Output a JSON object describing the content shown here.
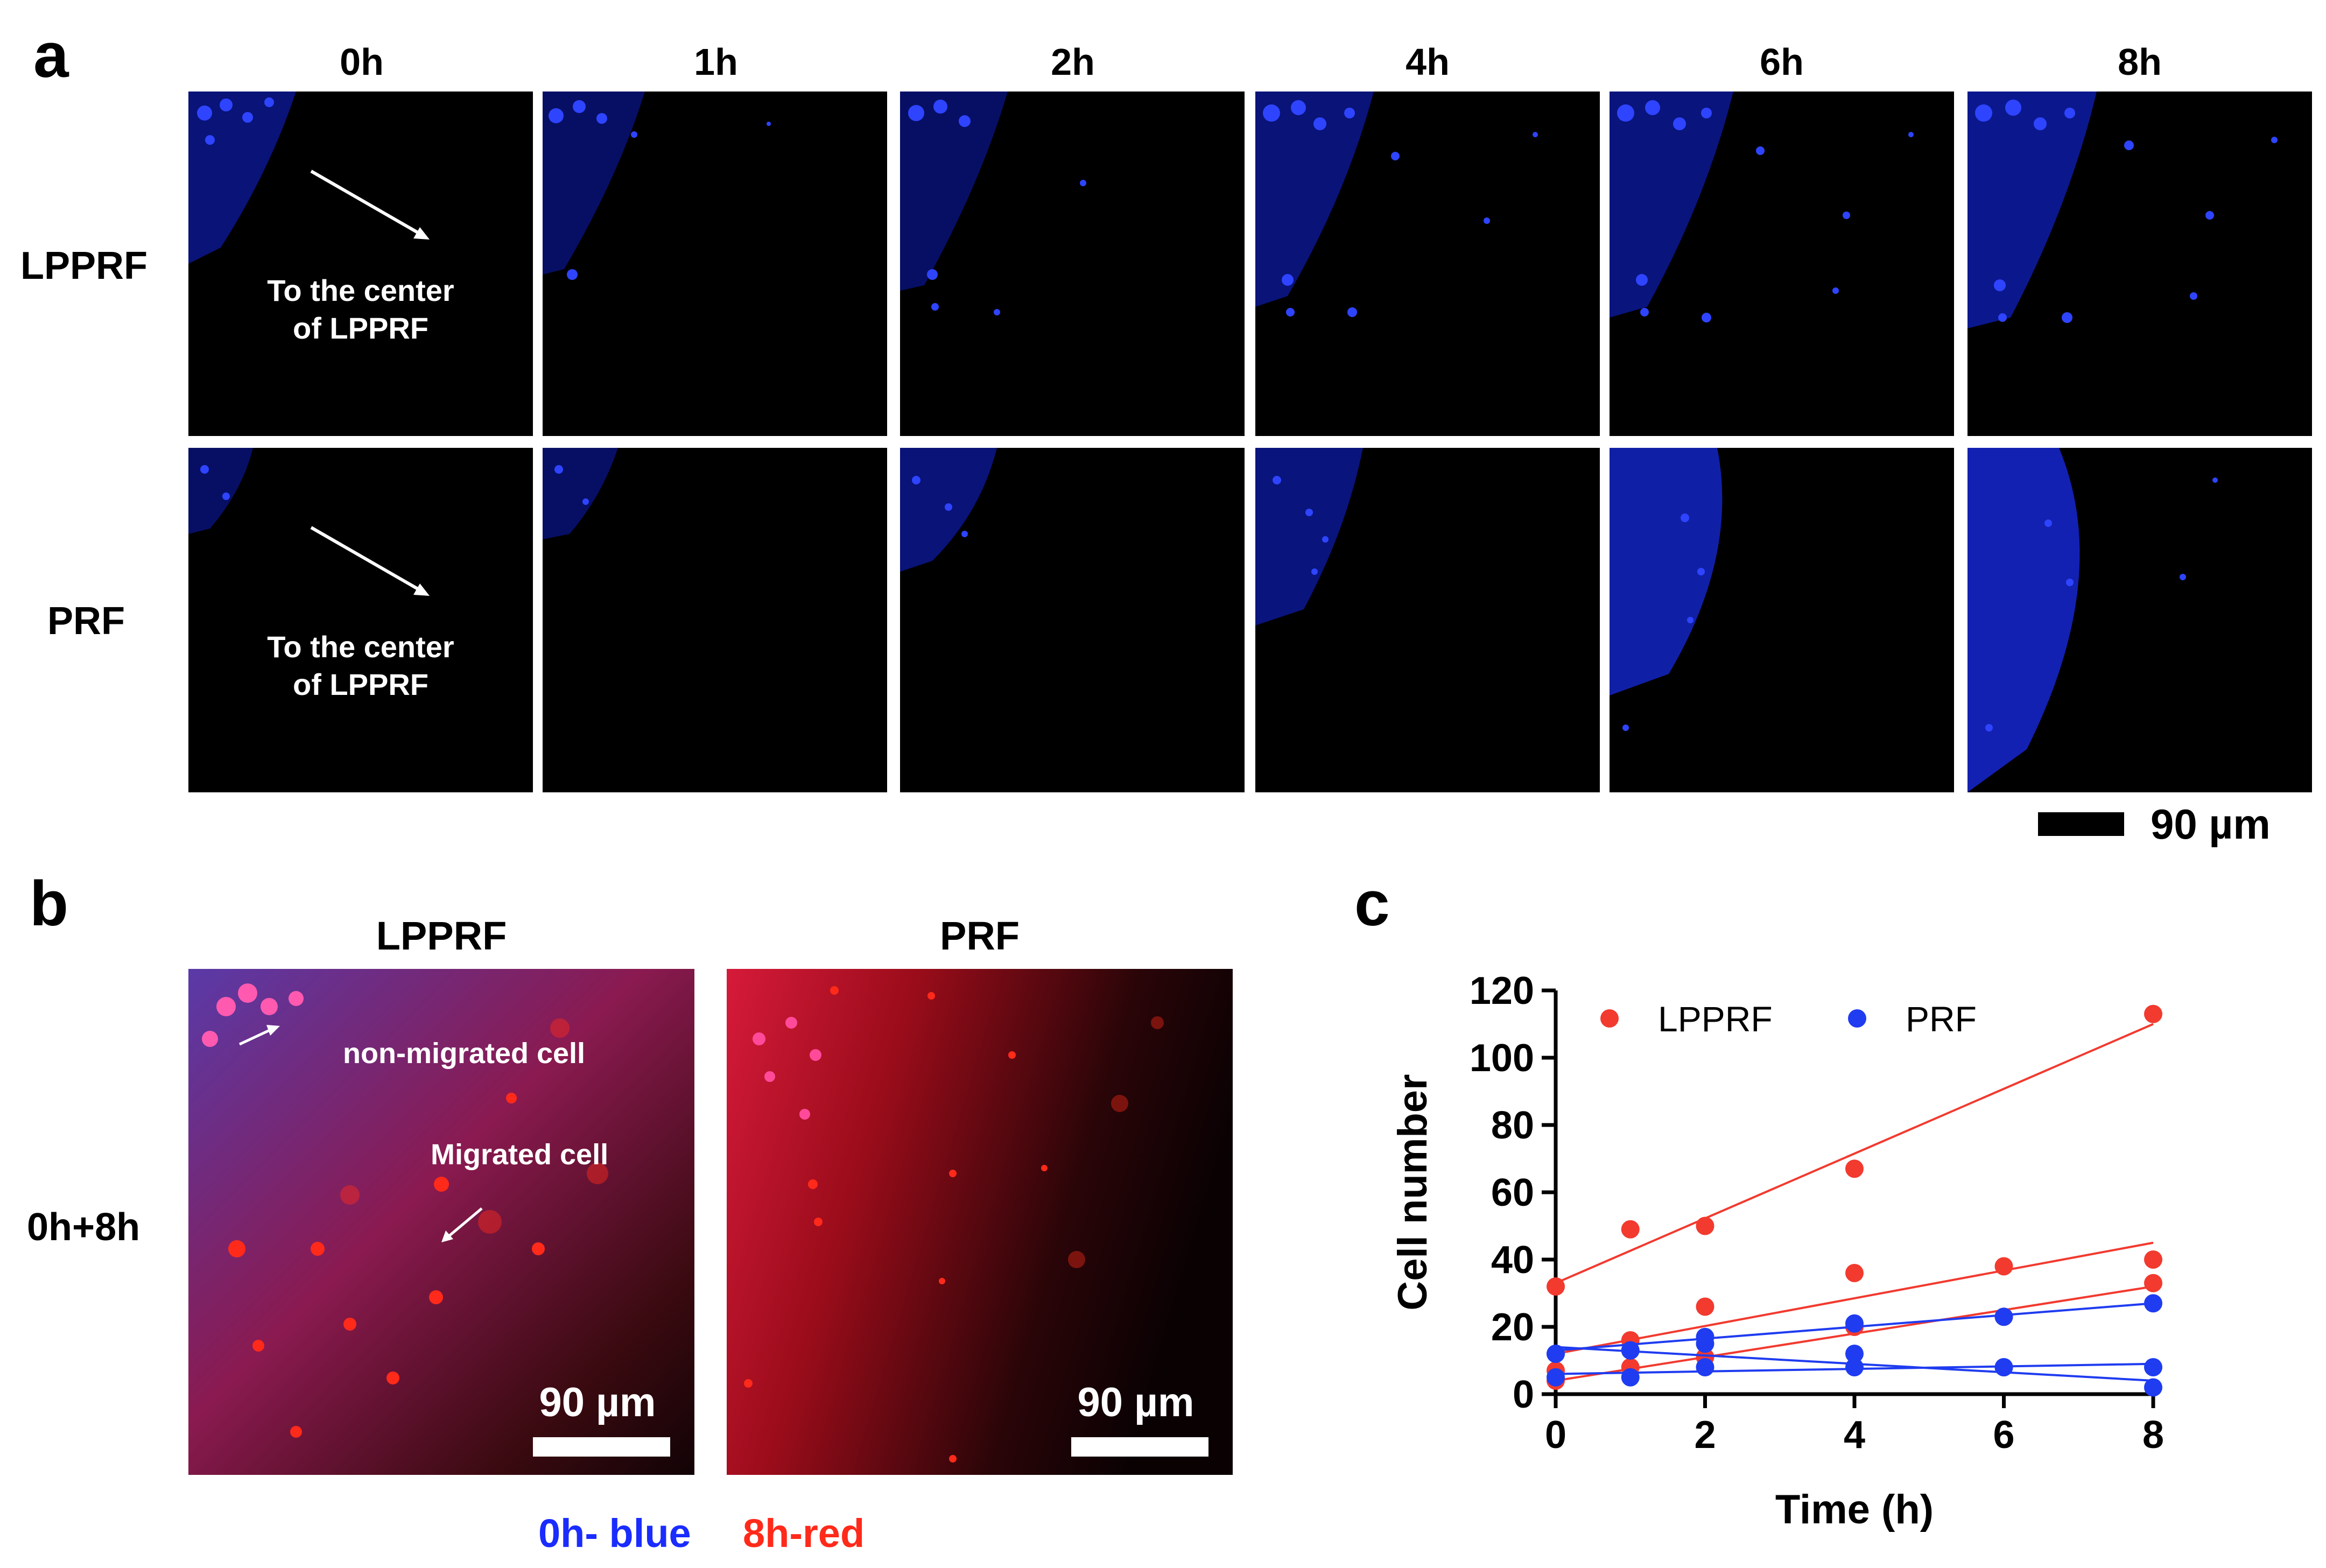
{
  "panel_a": {
    "letter": "a",
    "columns": [
      "0h",
      "1h",
      "2h",
      "4h",
      "6h",
      "8h"
    ],
    "rows": [
      "LPPRF",
      "PRF"
    ],
    "arrow_annotations": [
      "To the center\nof LPPRF",
      "To the center\nof LPPRF"
    ],
    "scale_bar_label": "90 µm"
  },
  "panel_b": {
    "letter": "b",
    "titles": [
      "LPPRF",
      "PRF"
    ],
    "row_label": "0h+8h",
    "annotations": {
      "non_migrated": "non-migrated cell",
      "migrated": "Migrated cell"
    },
    "scale_bar_label": "90 µm",
    "legend": {
      "blue": "0h- blue",
      "red": "8h-red"
    },
    "colors": {
      "blue": "#1a2cff",
      "red": "#ff2a1a"
    }
  },
  "chart_data": {
    "type": "scatter",
    "panel_letter": "c",
    "title": "",
    "xlabel": "Time (h)",
    "ylabel": "Cell number",
    "xlim": [
      0,
      8
    ],
    "ylim": [
      0,
      120
    ],
    "xticks": [
      0,
      2,
      4,
      6,
      8
    ],
    "yticks": [
      0,
      20,
      40,
      60,
      80,
      100,
      120
    ],
    "legend_position": "top",
    "series": [
      {
        "name": "LPPRF",
        "color": "#f23a2f",
        "replicates": [
          {
            "x": [
              0,
              1,
              2,
              4,
              8
            ],
            "y": [
              32,
              49,
              50,
              67,
              113
            ],
            "fit": [
              33,
              110
            ]
          },
          {
            "x": [
              0,
              1,
              2,
              4,
              6,
              8
            ],
            "y": [
              7,
              16,
              26,
              36,
              38,
              40
            ],
            "fit": [
              12,
              45
            ]
          },
          {
            "x": [
              0,
              1,
              2,
              4,
              6,
              8
            ],
            "y": [
              4,
              8,
              11,
              20,
              23,
              33
            ],
            "fit": [
              4,
              32
            ]
          }
        ]
      },
      {
        "name": "PRF",
        "color": "#1f3cf0",
        "replicates": [
          {
            "x": [
              0,
              1,
              2,
              4,
              6,
              8
            ],
            "y": [
              12,
              13,
              17,
              21,
              23,
              27
            ],
            "fit": [
              13,
              27
            ]
          },
          {
            "x": [
              0,
              1,
              2,
              4,
              6,
              8
            ],
            "y": [
              12,
              13,
              15,
              12,
              8,
              2
            ],
            "fit": [
              14,
              4
            ]
          },
          {
            "x": [
              0,
              1,
              2,
              4,
              6,
              8
            ],
            "y": [
              5,
              5,
              8,
              8,
              8,
              8
            ],
            "fit": [
              6,
              9
            ]
          }
        ]
      }
    ]
  }
}
